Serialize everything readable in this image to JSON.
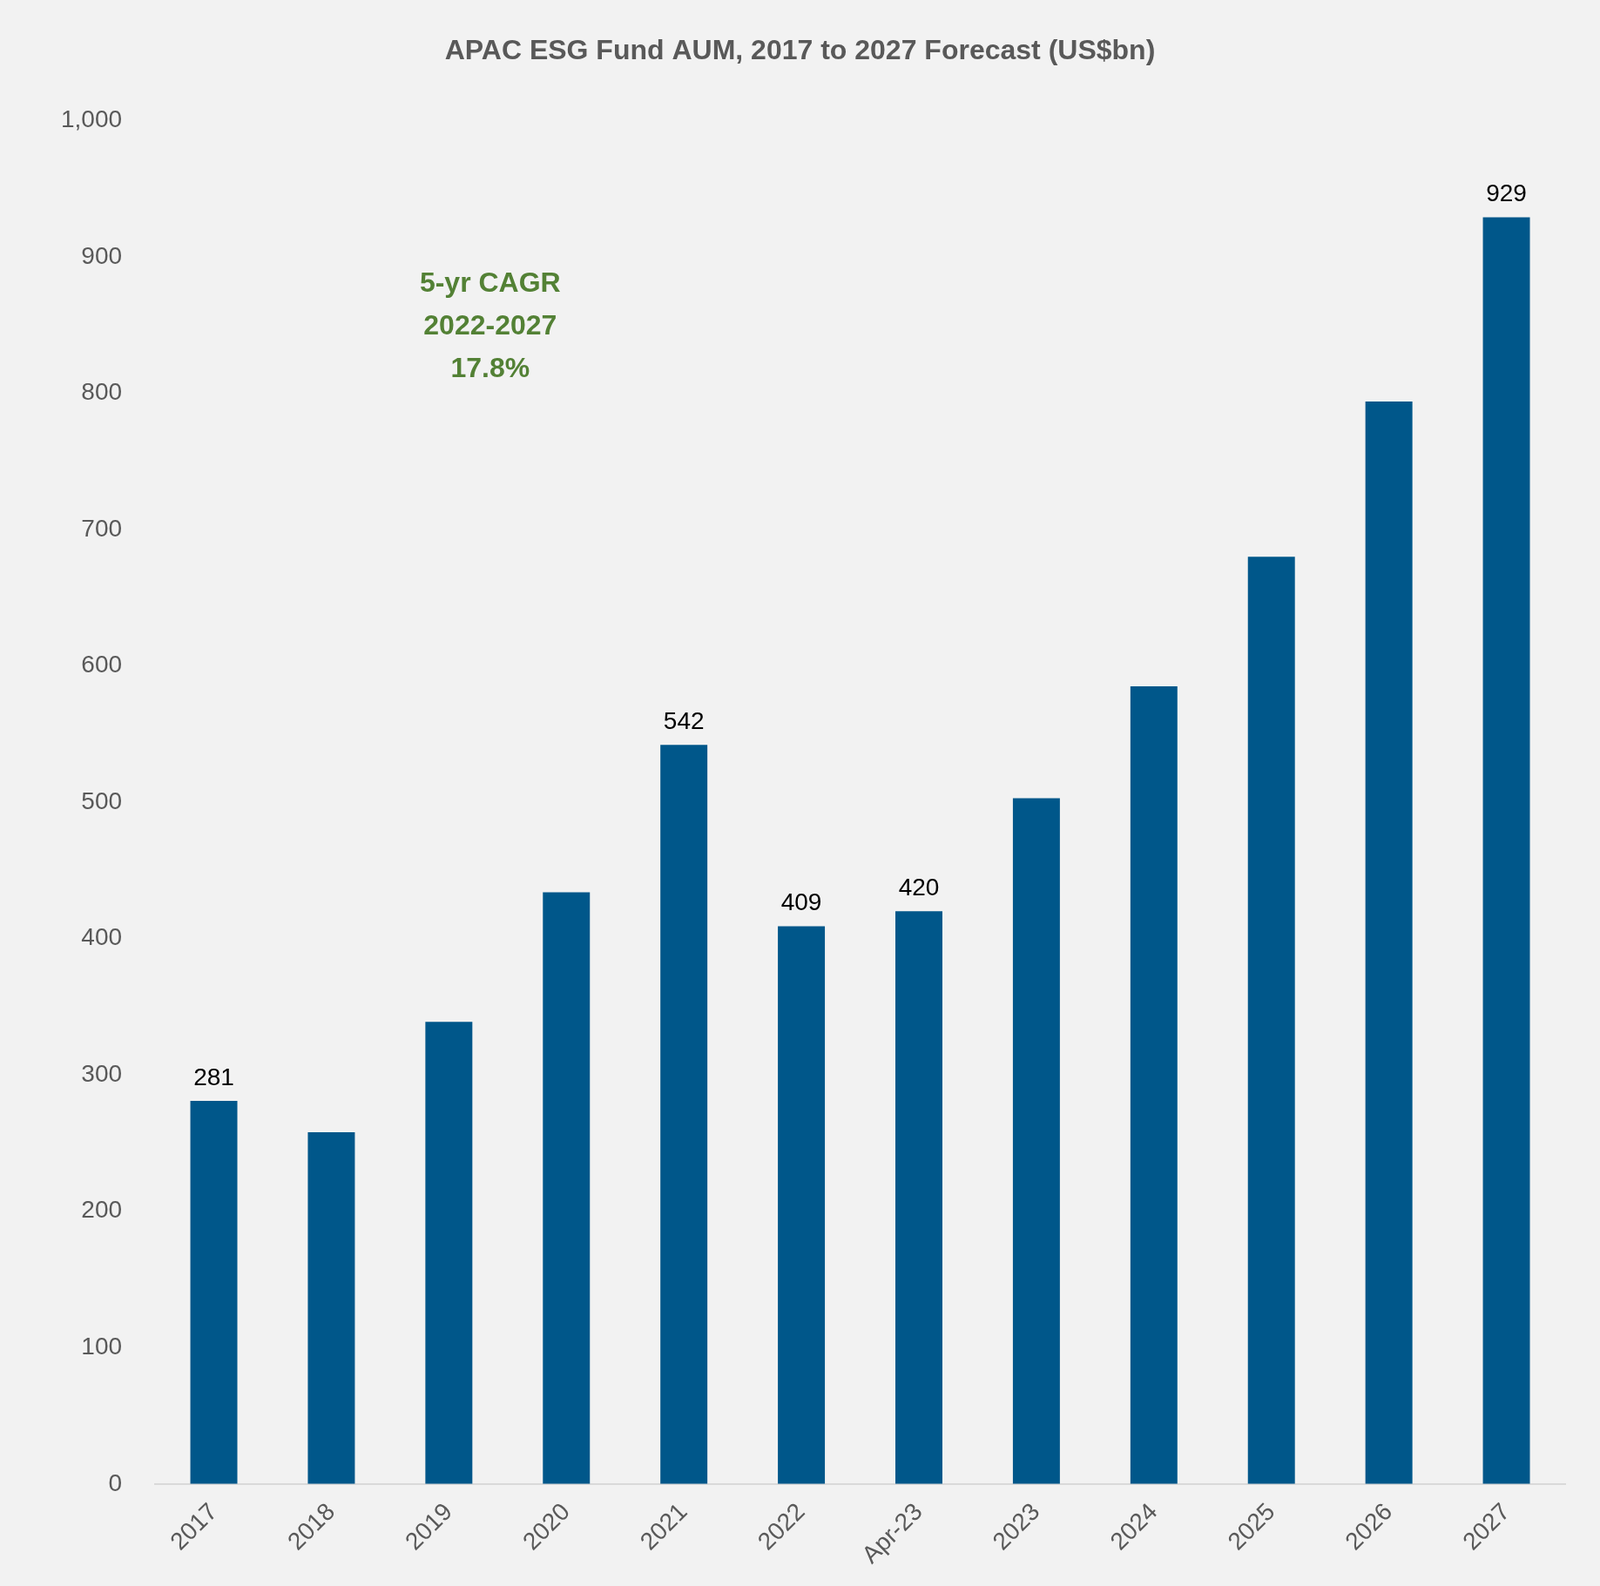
{
  "chart_data": {
    "type": "bar",
    "title": "APAC ESG Fund AUM, 2017 to 2027 Forecast (US$bn)",
    "categories": [
      "2017",
      "2018",
      "2019",
      "2020",
      "2021",
      "2022",
      "Apr-23",
      "2023",
      "2024",
      "2025",
      "2026",
      "2027"
    ],
    "values": [
      281,
      258,
      339,
      434,
      542,
      409,
      420,
      503,
      585,
      680,
      794,
      929
    ],
    "value_labels": [
      "281",
      null,
      null,
      null,
      "542",
      "409",
      "420",
      null,
      null,
      null,
      null,
      "929"
    ],
    "data_labels": true,
    "color": "#00578a",
    "ylim": [
      0,
      1000
    ],
    "yticks": [
      0,
      100,
      200,
      300,
      400,
      500,
      600,
      700,
      800,
      900,
      {
        "value": 1000,
        "label": "1,000"
      }
    ],
    "grid": false,
    "annotations": [
      {
        "lines": [
          "5-yr CAGR",
          "2022-2027",
          "17.8%"
        ],
        "color": "#538135"
      }
    ]
  }
}
